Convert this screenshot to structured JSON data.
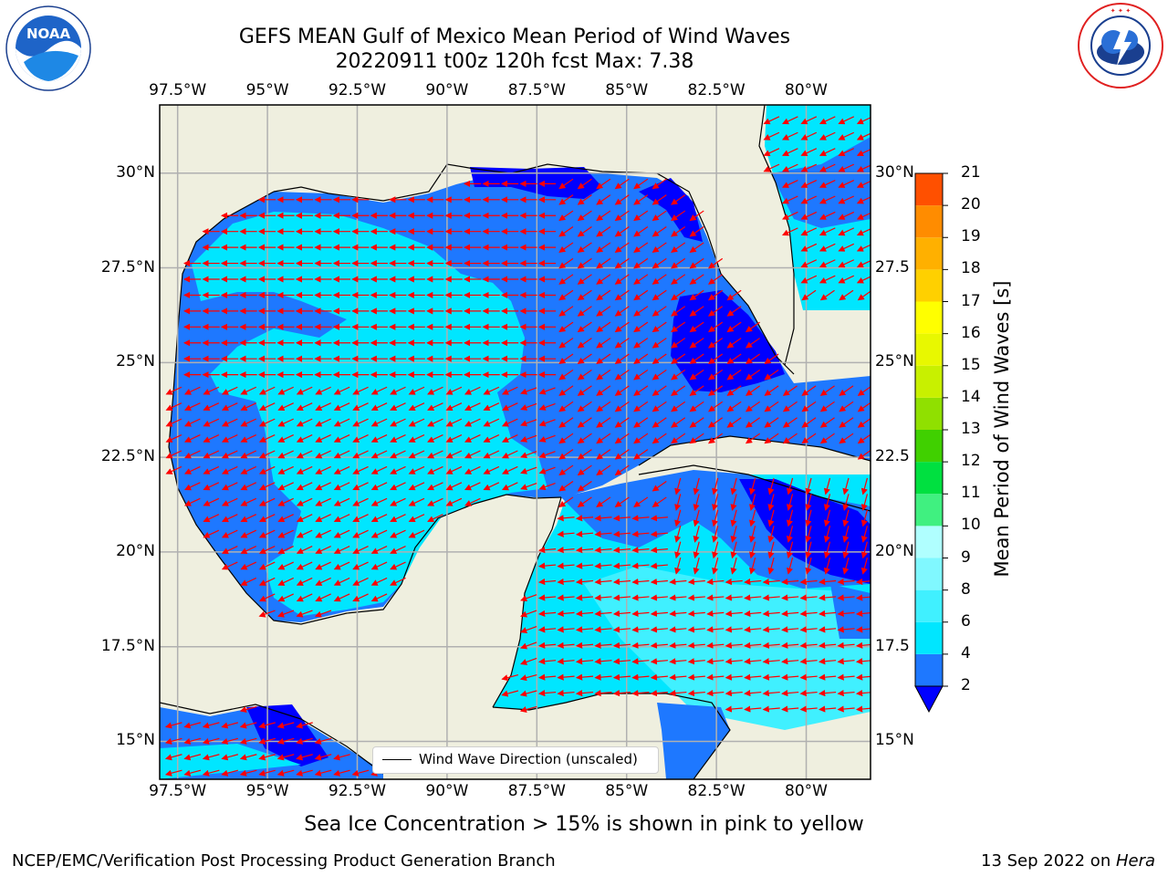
{
  "header": {
    "title_line1": "GEFS MEAN Gulf of Mexico Mean Period of Wind Waves",
    "title_line2": "20220911 t00z 120h fcst   Max: 7.38"
  },
  "logos": {
    "noaa_text": "NOAA",
    "noaa_ring_text": "NATIONAL OCEANIC AND ATMOSPHERIC ADMINISTRATION · U.S. DEPARTMENT OF COMMERCE",
    "nws_ring_text": "NATIONAL WEATHER SERVICE"
  },
  "chart_data": {
    "type": "heatmap",
    "variable_label": "Mean Period of Wind Waves [s]",
    "lon_ticks": [
      "97.5°W",
      "95°W",
      "92.5°W",
      "90°W",
      "87.5°W",
      "85°W",
      "82.5°W",
      "80°W"
    ],
    "lat_ticks_left": [
      "30°N",
      "27.5°N",
      "25°N",
      "22.5°N",
      "20°N",
      "17.5°N",
      "15°N"
    ],
    "lat_ticks_right": [
      "30°N",
      "27.5",
      "25°N",
      "22.5",
      "20°N",
      "17.5",
      "15°N"
    ],
    "colorbar": {
      "ticks": [
        "2",
        "4",
        "6",
        "8",
        "9",
        "10",
        "11",
        "12",
        "13",
        "14",
        "15",
        "16",
        "17",
        "18",
        "19",
        "20",
        "21"
      ],
      "colors": [
        "#1e78ff",
        "#00e6ff",
        "#40f0ff",
        "#80f8ff",
        "#b0ffff",
        "#40f080",
        "#00e040",
        "#40d000",
        "#90e000",
        "#c8f000",
        "#e8f800",
        "#ffff00",
        "#ffd000",
        "#ffb000",
        "#ff8c00",
        "#ff5000",
        "#ff2000",
        "#ff0000"
      ],
      "under_color": "#0000ff",
      "extend": "min"
    },
    "legend": {
      "label": "Wind Wave Direction (unscaled)",
      "placement": "lower-center"
    },
    "grid": true,
    "max_value": 7.38,
    "period_ranges_present": [
      "<2",
      "2-4",
      "4-6",
      "6-8"
    ]
  },
  "footer": {
    "note": "Sea Ice Concentration > 15% is shown in pink to yellow",
    "branch": "NCEP/EMC/Verification Post Processing Product Generation Branch",
    "date_prefix": "13 Sep 2022 on ",
    "machine": "Hera"
  }
}
